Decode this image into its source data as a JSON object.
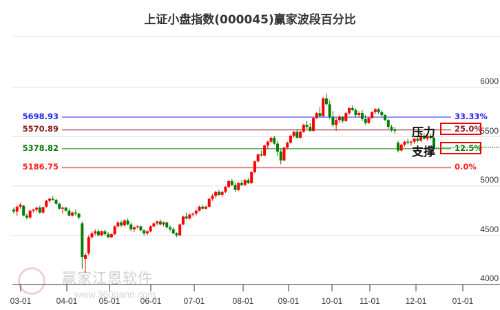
{
  "title": "上证小盘指数(000045)赢家波段百分比",
  "watermark": {
    "text": "赢家江恩软件",
    "url": "www.360gann.com",
    "logo_chars": "江赢恩家"
  },
  "colors": {
    "up": "#ff0000",
    "down": "#008000",
    "grid": "#e0e0e0",
    "axis": "#333333"
  },
  "chart_data": {
    "type": "candlestick",
    "title": "上证小盘指数(000045)赢家波段百分比",
    "xlabel": "",
    "ylabel": "",
    "ylim": [
      4000,
      6000
    ],
    "y_ticks": [
      6000,
      5500,
      5000,
      4500,
      4000
    ],
    "x_ticks": [
      "03-01",
      "04-01",
      "05-01",
      "06-01",
      "07-01",
      "08-01",
      "09-01",
      "10-01",
      "11-01",
      "12-01",
      "01-01"
    ],
    "grid": "horizontal",
    "levels": [
      {
        "value": 5698.93,
        "label": "5698.93",
        "pct": "33.33%",
        "color": "#2020ff"
      },
      {
        "value": 5570.89,
        "label": "5570.89",
        "pct": "25.0%",
        "color": "#8b1a1a",
        "line_color": "#c08080",
        "boxed": true
      },
      {
        "value": 5378.82,
        "label": "5378.82",
        "pct": "12.5%",
        "color": "#0a7a0a",
        "boxed": true
      },
      {
        "value": 5186.75,
        "label": "5186.75",
        "pct": "0.0%",
        "color": "#ff2020",
        "line_color": "#f08080"
      }
    ],
    "annotations": [
      {
        "text": "压力",
        "near": "25.0%"
      },
      {
        "text": "支撑",
        "near": "12.5%"
      }
    ],
    "last_close_dotted": 5400,
    "ohlc_approx": [
      [
        4760,
        4780,
        4720,
        4740
      ],
      [
        4740,
        4800,
        4700,
        4790
      ],
      [
        4790,
        4830,
        4770,
        4810
      ],
      [
        4800,
        4810,
        4690,
        4700
      ],
      [
        4700,
        4720,
        4660,
        4680
      ],
      [
        4680,
        4760,
        4670,
        4750
      ],
      [
        4750,
        4770,
        4730,
        4760
      ],
      [
        4760,
        4790,
        4740,
        4780
      ],
      [
        4780,
        4800,
        4720,
        4730
      ],
      [
        4730,
        4790,
        4720,
        4785
      ],
      [
        4790,
        4860,
        4780,
        4850
      ],
      [
        4850,
        4880,
        4830,
        4870
      ],
      [
        4870,
        4900,
        4850,
        4860
      ],
      [
        4860,
        4870,
        4810,
        4820
      ],
      [
        4820,
        4830,
        4760,
        4770
      ],
      [
        4770,
        4790,
        4720,
        4780
      ],
      [
        4780,
        4790,
        4740,
        4750
      ],
      [
        4750,
        4770,
        4690,
        4700
      ],
      [
        4700,
        4740,
        4690,
        4730
      ],
      [
        4730,
        4760,
        4700,
        4720
      ],
      [
        4720,
        4730,
        4660,
        4680
      ],
      [
        4620,
        4640,
        4160,
        4280
      ],
      [
        4260,
        4320,
        4120,
        4300
      ],
      [
        4320,
        4500,
        4300,
        4480
      ],
      [
        4480,
        4540,
        4460,
        4520
      ],
      [
        4520,
        4560,
        4500,
        4540
      ],
      [
        4540,
        4560,
        4490,
        4500
      ],
      [
        4500,
        4550,
        4490,
        4540
      ],
      [
        4540,
        4560,
        4500,
        4510
      ],
      [
        4510,
        4530,
        4470,
        4480
      ],
      [
        4480,
        4520,
        4470,
        4510
      ],
      [
        4510,
        4600,
        4500,
        4590
      ],
      [
        4590,
        4640,
        4580,
        4630
      ],
      [
        4630,
        4650,
        4580,
        4600
      ],
      [
        4600,
        4660,
        4590,
        4650
      ],
      [
        4650,
        4670,
        4600,
        4610
      ],
      [
        4610,
        4630,
        4540,
        4560
      ],
      [
        4560,
        4590,
        4530,
        4580
      ],
      [
        4580,
        4600,
        4570,
        4590
      ],
      [
        4590,
        4600,
        4540,
        4550
      ],
      [
        4550,
        4560,
        4500,
        4520
      ],
      [
        4520,
        4550,
        4500,
        4540
      ],
      [
        4540,
        4600,
        4530,
        4590
      ],
      [
        4590,
        4630,
        4580,
        4620
      ],
      [
        4620,
        4650,
        4600,
        4640
      ],
      [
        4640,
        4660,
        4600,
        4610
      ],
      [
        4610,
        4640,
        4590,
        4630
      ],
      [
        4630,
        4640,
        4570,
        4580
      ],
      [
        4580,
        4600,
        4540,
        4560
      ],
      [
        4560,
        4580,
        4510,
        4520
      ],
      [
        4520,
        4530,
        4480,
        4500
      ],
      [
        4500,
        4620,
        4490,
        4610
      ],
      [
        4610,
        4700,
        4600,
        4690
      ],
      [
        4690,
        4730,
        4660,
        4670
      ],
      [
        4670,
        4720,
        4660,
        4710
      ],
      [
        4710,
        4730,
        4690,
        4720
      ],
      [
        4720,
        4760,
        4700,
        4750
      ],
      [
        4750,
        4800,
        4740,
        4790
      ],
      [
        4790,
        4810,
        4760,
        4770
      ],
      [
        4770,
        4800,
        4760,
        4790
      ],
      [
        4790,
        4880,
        4780,
        4870
      ],
      [
        4870,
        4920,
        4850,
        4900
      ],
      [
        4900,
        4950,
        4880,
        4940
      ],
      [
        4940,
        4960,
        4900,
        4910
      ],
      [
        4910,
        4950,
        4890,
        4940
      ],
      [
        4940,
        5000,
        4930,
        4990
      ],
      [
        4990,
        5060,
        4980,
        5050
      ],
      [
        5050,
        5070,
        5000,
        5010
      ],
      [
        5010,
        5030,
        4940,
        4960
      ],
      [
        4960,
        5040,
        4950,
        5030
      ],
      [
        5030,
        5060,
        5000,
        5010
      ],
      [
        5010,
        5070,
        5000,
        5060
      ],
      [
        5060,
        5080,
        5020,
        5030
      ],
      [
        5030,
        5150,
        5020,
        5140
      ],
      [
        5140,
        5260,
        5130,
        5250
      ],
      [
        5250,
        5330,
        5240,
        5320
      ],
      [
        5320,
        5360,
        5300,
        5310
      ],
      [
        5310,
        5420,
        5300,
        5410
      ],
      [
        5410,
        5460,
        5380,
        5450
      ],
      [
        5450,
        5500,
        5440,
        5490
      ],
      [
        5490,
        5510,
        5420,
        5430
      ],
      [
        5430,
        5460,
        5300,
        5350
      ],
      [
        5350,
        5380,
        5220,
        5260
      ],
      [
        5260,
        5400,
        5250,
        5390
      ],
      [
        5390,
        5450,
        5370,
        5440
      ],
      [
        5440,
        5520,
        5430,
        5510
      ],
      [
        5510,
        5560,
        5490,
        5550
      ],
      [
        5550,
        5580,
        5480,
        5490
      ],
      [
        5490,
        5560,
        5480,
        5550
      ],
      [
        5550,
        5630,
        5540,
        5620
      ],
      [
        5620,
        5660,
        5580,
        5600
      ],
      [
        5600,
        5640,
        5550,
        5560
      ],
      [
        5560,
        5700,
        5550,
        5690
      ],
      [
        5690,
        5750,
        5680,
        5740
      ],
      [
        5740,
        5800,
        5700,
        5710
      ],
      [
        5710,
        5900,
        5700,
        5890
      ],
      [
        5890,
        5940,
        5820,
        5830
      ],
      [
        5830,
        5870,
        5680,
        5700
      ],
      [
        5700,
        5760,
        5600,
        5620
      ],
      [
        5620,
        5690,
        5560,
        5670
      ],
      [
        5670,
        5720,
        5640,
        5700
      ],
      [
        5700,
        5710,
        5640,
        5660
      ],
      [
        5660,
        5750,
        5650,
        5740
      ],
      [
        5740,
        5800,
        5720,
        5790
      ],
      [
        5790,
        5820,
        5760,
        5770
      ],
      [
        5770,
        5790,
        5700,
        5720
      ],
      [
        5720,
        5760,
        5700,
        5740
      ],
      [
        5740,
        5770,
        5660,
        5680
      ],
      [
        5680,
        5720,
        5620,
        5640
      ],
      [
        5640,
        5700,
        5630,
        5690
      ],
      [
        5690,
        5760,
        5680,
        5750
      ],
      [
        5750,
        5790,
        5730,
        5780
      ],
      [
        5780,
        5790,
        5730,
        5750
      ],
      [
        5750,
        5770,
        5700,
        5720
      ],
      [
        5720,
        5730,
        5660,
        5670
      ],
      [
        5670,
        5680,
        5580,
        5600
      ],
      [
        5600,
        5620,
        5550,
        5570
      ],
      [
        5570,
        5600,
        5530,
        5560
      ],
      [
        5440,
        5460,
        5340,
        5360
      ],
      [
        5360,
        5430,
        5350,
        5420
      ],
      [
        5420,
        5460,
        5400,
        5450
      ],
      [
        5450,
        5480,
        5420,
        5440
      ],
      [
        5440,
        5460,
        5410,
        5450
      ],
      [
        5450,
        5490,
        5430,
        5480
      ],
      [
        5480,
        5500,
        5440,
        5460
      ],
      [
        5460,
        5520,
        5450,
        5510
      ],
      [
        5510,
        5540,
        5470,
        5480
      ],
      [
        5480,
        5520,
        5460,
        5510
      ],
      [
        5510,
        5530,
        5470,
        5490
      ],
      [
        5490,
        5500,
        5380,
        5400
      ]
    ]
  }
}
